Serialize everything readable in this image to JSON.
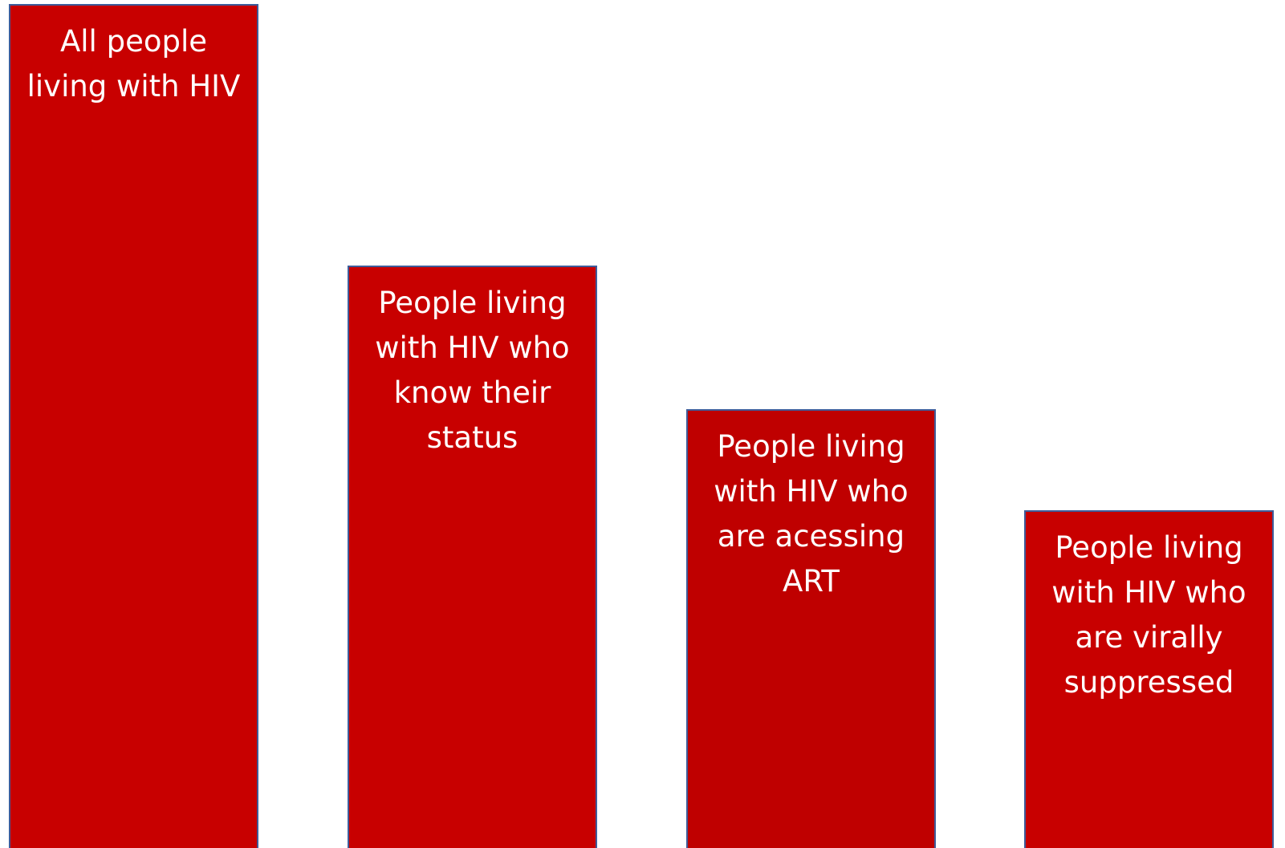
{
  "chart_data": {
    "type": "bar",
    "categories": [
      "All people living with HIV",
      "People living with HIV who know their status",
      "People living with HIV who are acessing ART",
      "People living with HIV who are virally suppressed"
    ],
    "values": [
      100,
      69,
      52,
      40
    ],
    "title": "",
    "xlabel": "",
    "ylabel": "",
    "ylim": [
      0,
      100
    ],
    "grid": false,
    "legend": "none",
    "bar_color": "#c80000",
    "bar_outline_color": "#3e5c9a",
    "bar_fill_variants": [
      "#c80000",
      "#c80000",
      "#bf0000",
      "#c80000"
    ]
  }
}
